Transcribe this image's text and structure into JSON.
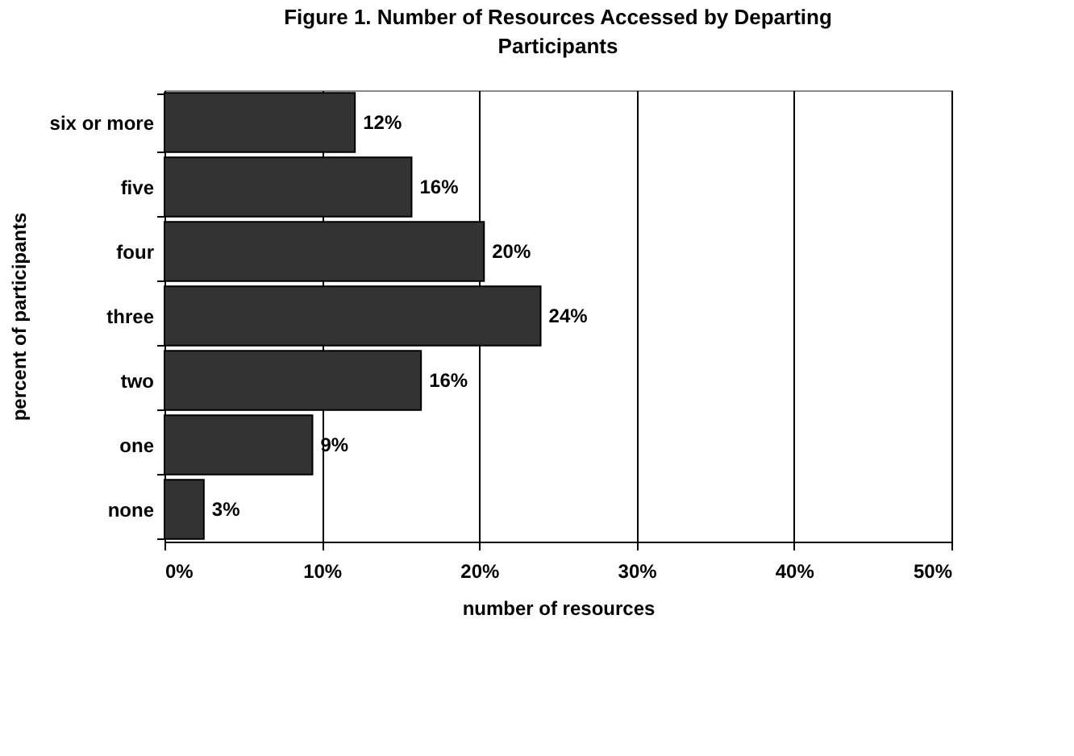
{
  "chart_data": {
    "type": "bar",
    "orientation": "horizontal",
    "title": "Figure 1. Number of Resources Accessed by Departing Participants",
    "xlabel": "number of resources",
    "ylabel": "percent of participants",
    "categories": [
      "six or more",
      "five",
      "four",
      "three",
      "two",
      "one",
      "none"
    ],
    "values": [
      12.1,
      15.7,
      20.3,
      23.9,
      16.3,
      9.4,
      2.5
    ],
    "value_labels": [
      "12%",
      "16%",
      "20%",
      "24%",
      "16%",
      "9%",
      "3%"
    ],
    "color": "#333333",
    "xlim": [
      0,
      50
    ],
    "xticks": [
      {
        "value": 0,
        "label": "0%"
      },
      {
        "value": 10,
        "label": "10%"
      },
      {
        "value": 20,
        "label": "20%"
      },
      {
        "value": 30,
        "label": "30%"
      },
      {
        "value": 40,
        "label": "40%"
      },
      {
        "value": 50,
        "label": "50%"
      }
    ],
    "grid": "x"
  }
}
